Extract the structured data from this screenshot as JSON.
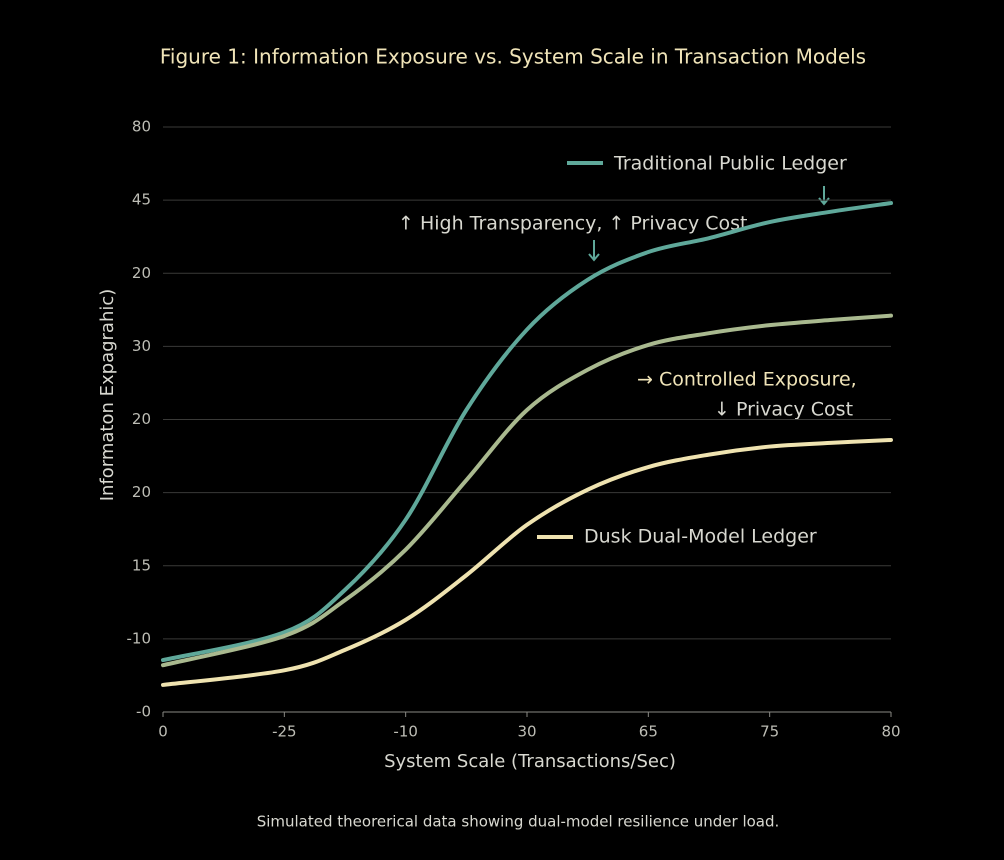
{
  "chart_data": {
    "type": "line",
    "title": "Figure 1: Information Exposure vs. System Scale in Transaction Models",
    "x_label": "System Scale (Transactions/Sec)",
    "y_label": "Informaton Expagrahic)",
    "caption": "Simulated theorerical data showing dual-model resilience under load.",
    "xlim": [
      0,
      6
    ],
    "xticks": [
      0,
      {
        "value": 1,
        "label": "-25"
      },
      {
        "value": 2,
        "label": "-10"
      },
      {
        "value": 3,
        "label": "30"
      },
      {
        "value": 4,
        "label": "65"
      },
      {
        "value": 5,
        "label": "75"
      },
      {
        "value": 6,
        "label": "80"
      }
    ],
    "ylim": [
      0,
      8
    ],
    "yticks": [
      {
        "value": 0,
        "label": "-0"
      },
      {
        "value": 1,
        "label": "-10"
      },
      {
        "value": 2,
        "label": "15"
      },
      {
        "value": 3,
        "label": "20"
      },
      {
        "value": 4,
        "label": "20"
      },
      {
        "value": 5,
        "label": "30"
      },
      {
        "value": 6,
        "label": "20"
      },
      {
        "value": 7,
        "label": "45"
      },
      {
        "value": 8,
        "label": "80"
      }
    ],
    "grid": true,
    "x": [
      0,
      1,
      1.5,
      2,
      2.5,
      3,
      3.5,
      4,
      4.5,
      5,
      5.5,
      6
    ],
    "series": [
      {
        "name": "Traditional Public Ledger",
        "color": "#5fa89a",
        "values": [
          0.71,
          1.09,
          1.67,
          2.63,
          4.13,
          5.23,
          5.91,
          6.29,
          6.48,
          6.7,
          6.84,
          6.96
        ]
      },
      {
        "color": "#a9b98f",
        "values": [
          0.64,
          1.04,
          1.53,
          2.22,
          3.17,
          4.13,
          4.68,
          5.02,
          5.18,
          5.29,
          5.36,
          5.42
        ]
      },
      {
        "name": "Dusk Dual-Model Ledger",
        "color": "#efe3b0",
        "values": [
          0.37,
          0.57,
          0.85,
          1.26,
          1.87,
          2.56,
          3.04,
          3.35,
          3.52,
          3.63,
          3.68,
          3.72
        ]
      }
    ],
    "annotations": [
      "↑ High Transparency, ↑ Privacy Cost",
      "→ Controlled Exposure,",
      "↓ Privacy Cost"
    ]
  }
}
